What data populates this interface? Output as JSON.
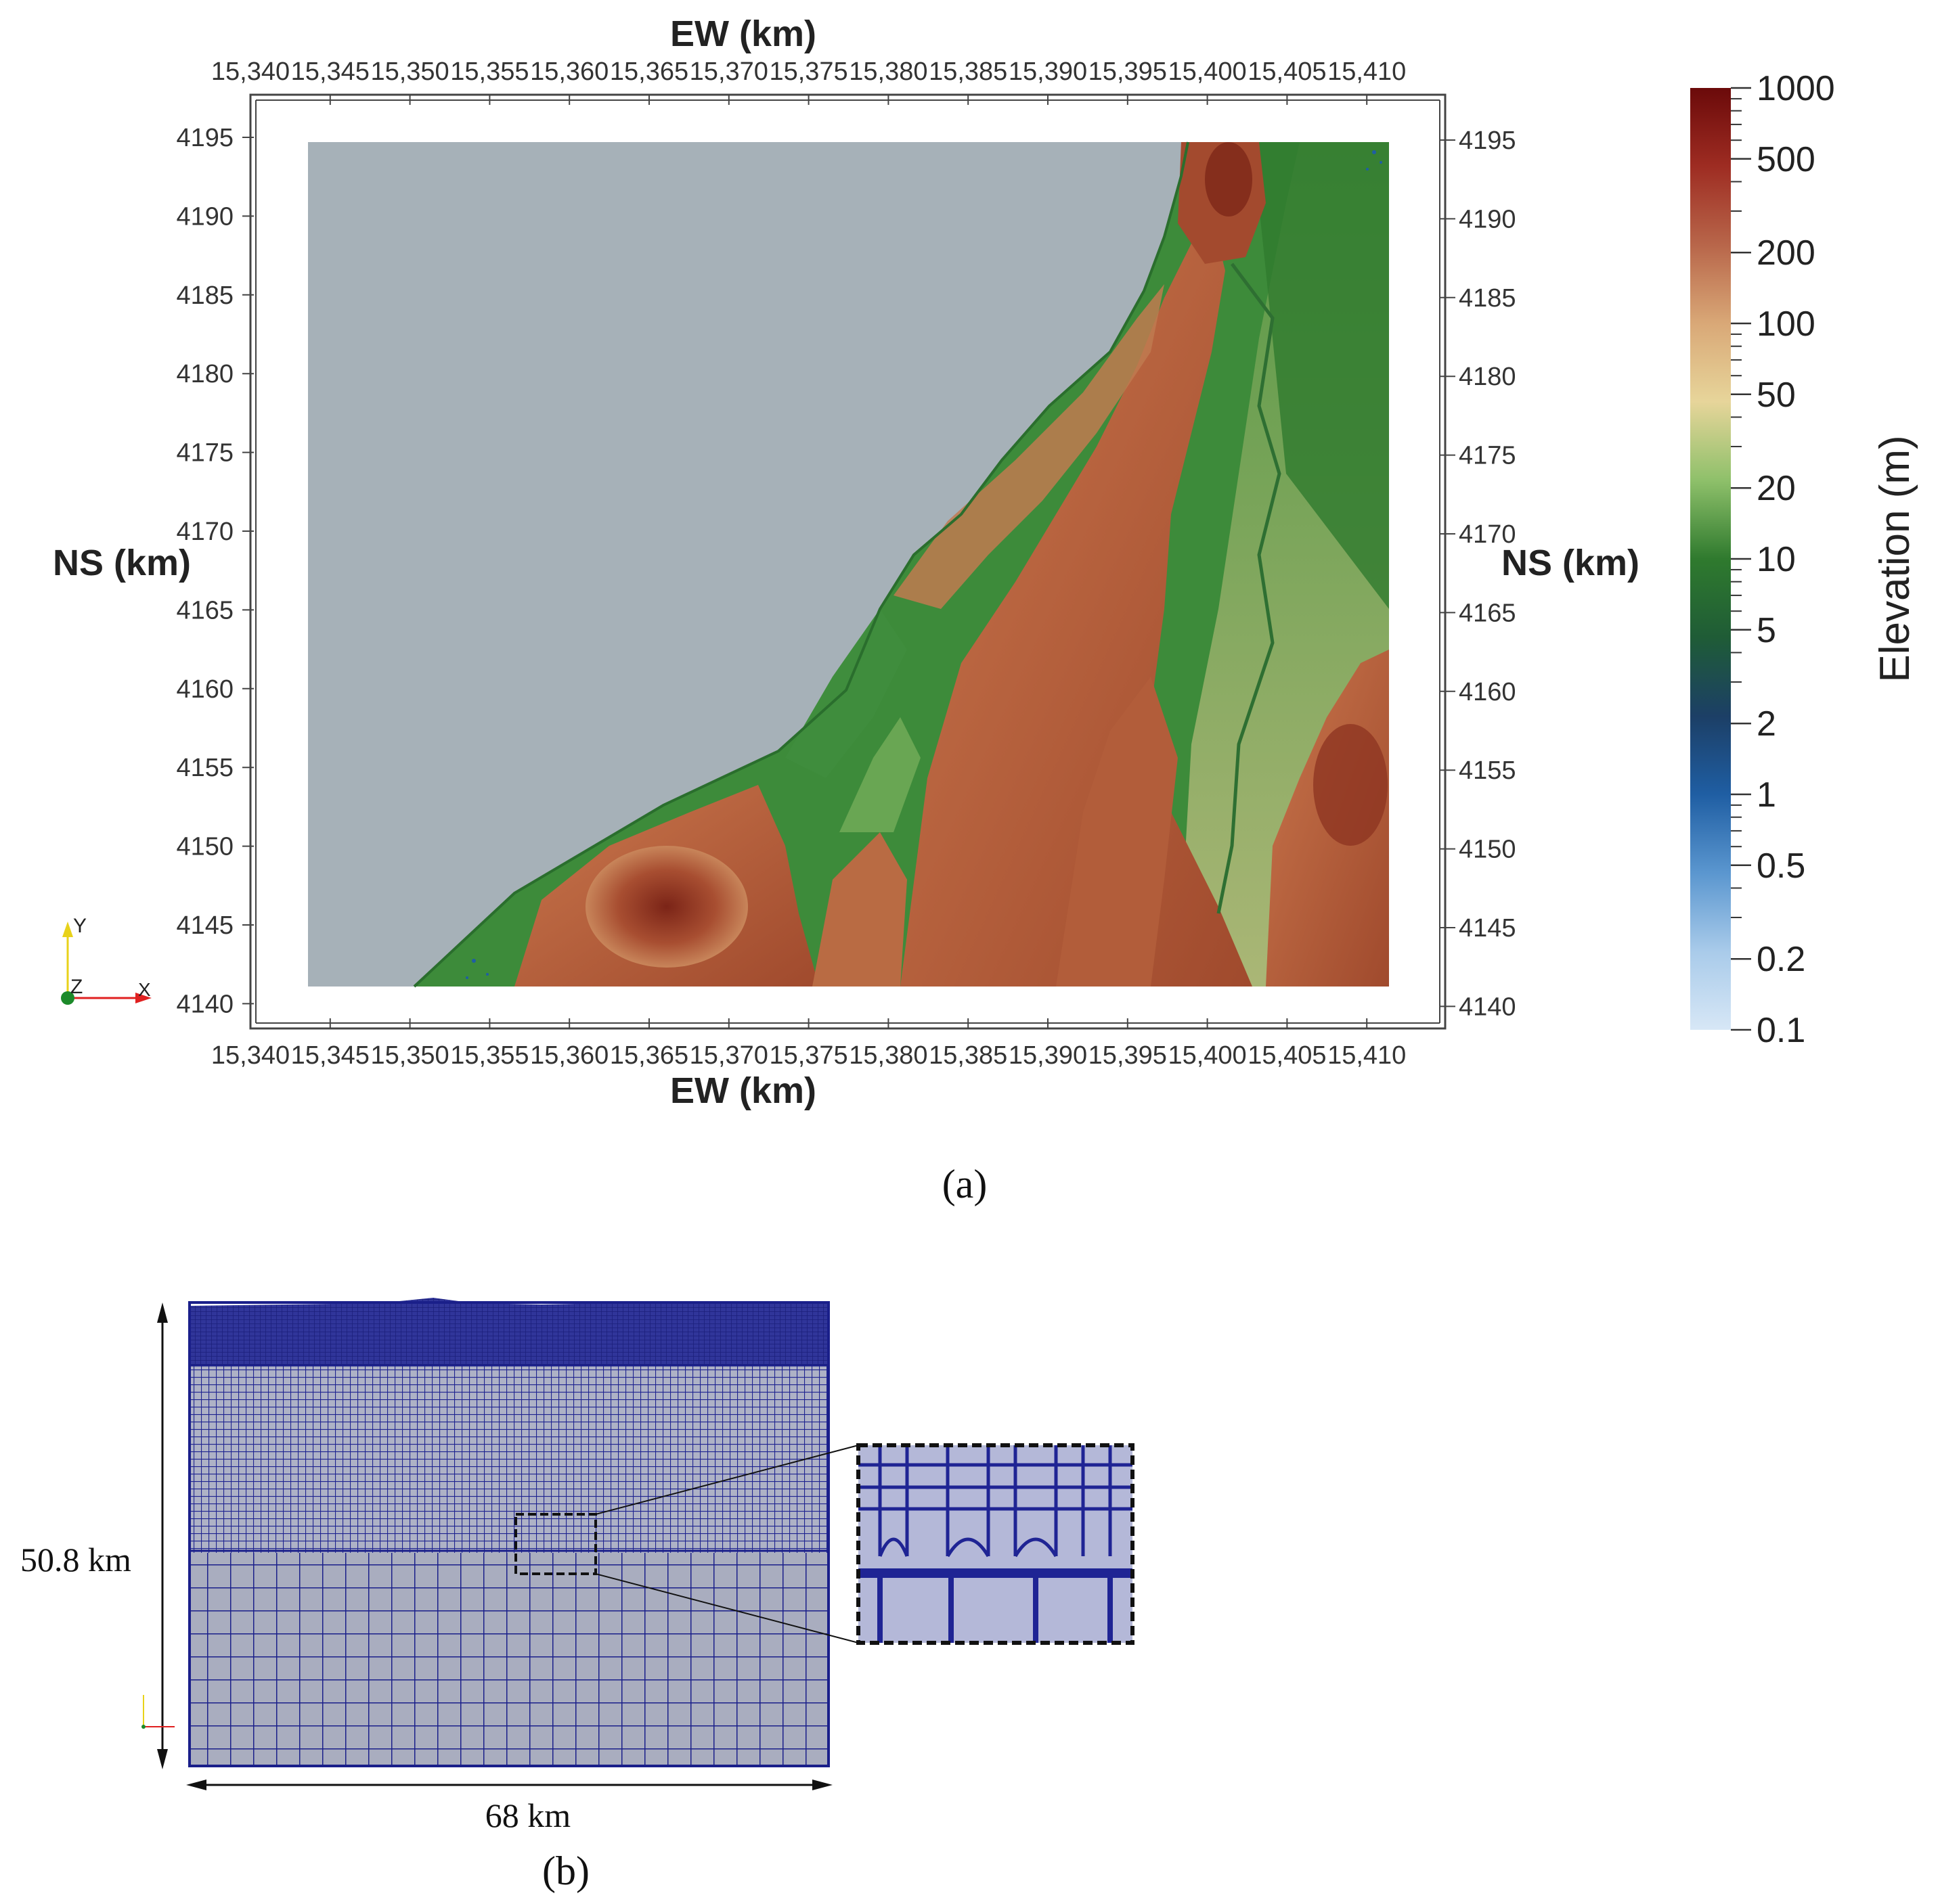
{
  "panel_a": {
    "caption": "(a)",
    "axis_title_top": "EW (km)",
    "axis_title_bottom": "EW (km)",
    "axis_title_left": "NS (km)",
    "axis_title_right": "NS (km)",
    "x_ticks": [
      "15,340",
      "15,345",
      "15,350",
      "15,355",
      "15,360",
      "15,365",
      "15,370",
      "15,375",
      "15,380",
      "15,385",
      "15,390",
      "15,395",
      "15,400",
      "15,405",
      "15,410"
    ],
    "y_ticks": [
      "4195",
      "4190",
      "4185",
      "4180",
      "4175",
      "4170",
      "4165",
      "4160",
      "4155",
      "4150",
      "4145",
      "4140"
    ],
    "orientation": {
      "y": "Y",
      "z": "Z",
      "x": "X"
    },
    "colorbar": {
      "title": "Elevation (m)",
      "scale": "log",
      "range": [
        0.1,
        1000
      ],
      "labels": [
        "1000",
        "500",
        "200",
        "100",
        "50",
        "20",
        "10",
        "5",
        "2",
        "1",
        "0.5",
        "0.2",
        "0.1"
      ],
      "colors": [
        "#6b0a0a",
        "#9e2c22",
        "#b8664a",
        "#d9a877",
        "#e7d59a",
        "#8ec06a",
        "#2f7a2e",
        "#1f5c36",
        "#1c3f66",
        "#1f5ea3",
        "#5a96cf",
        "#a9cbea",
        "#d7e7f6"
      ]
    },
    "colors": {
      "sea": "#a6b1b8",
      "lowland": "#3d8b3a",
      "plain": "#c9c384",
      "hills": "#b6643f",
      "peaks": "#7b2417"
    }
  },
  "panel_b": {
    "caption": "(b)",
    "height_label": "50.8 km",
    "width_label": "68 km",
    "colors": {
      "mesh_line": "#1a1f8a",
      "mesh_fill": "#a8acbf",
      "dense_fill": "#2d3296"
    }
  }
}
